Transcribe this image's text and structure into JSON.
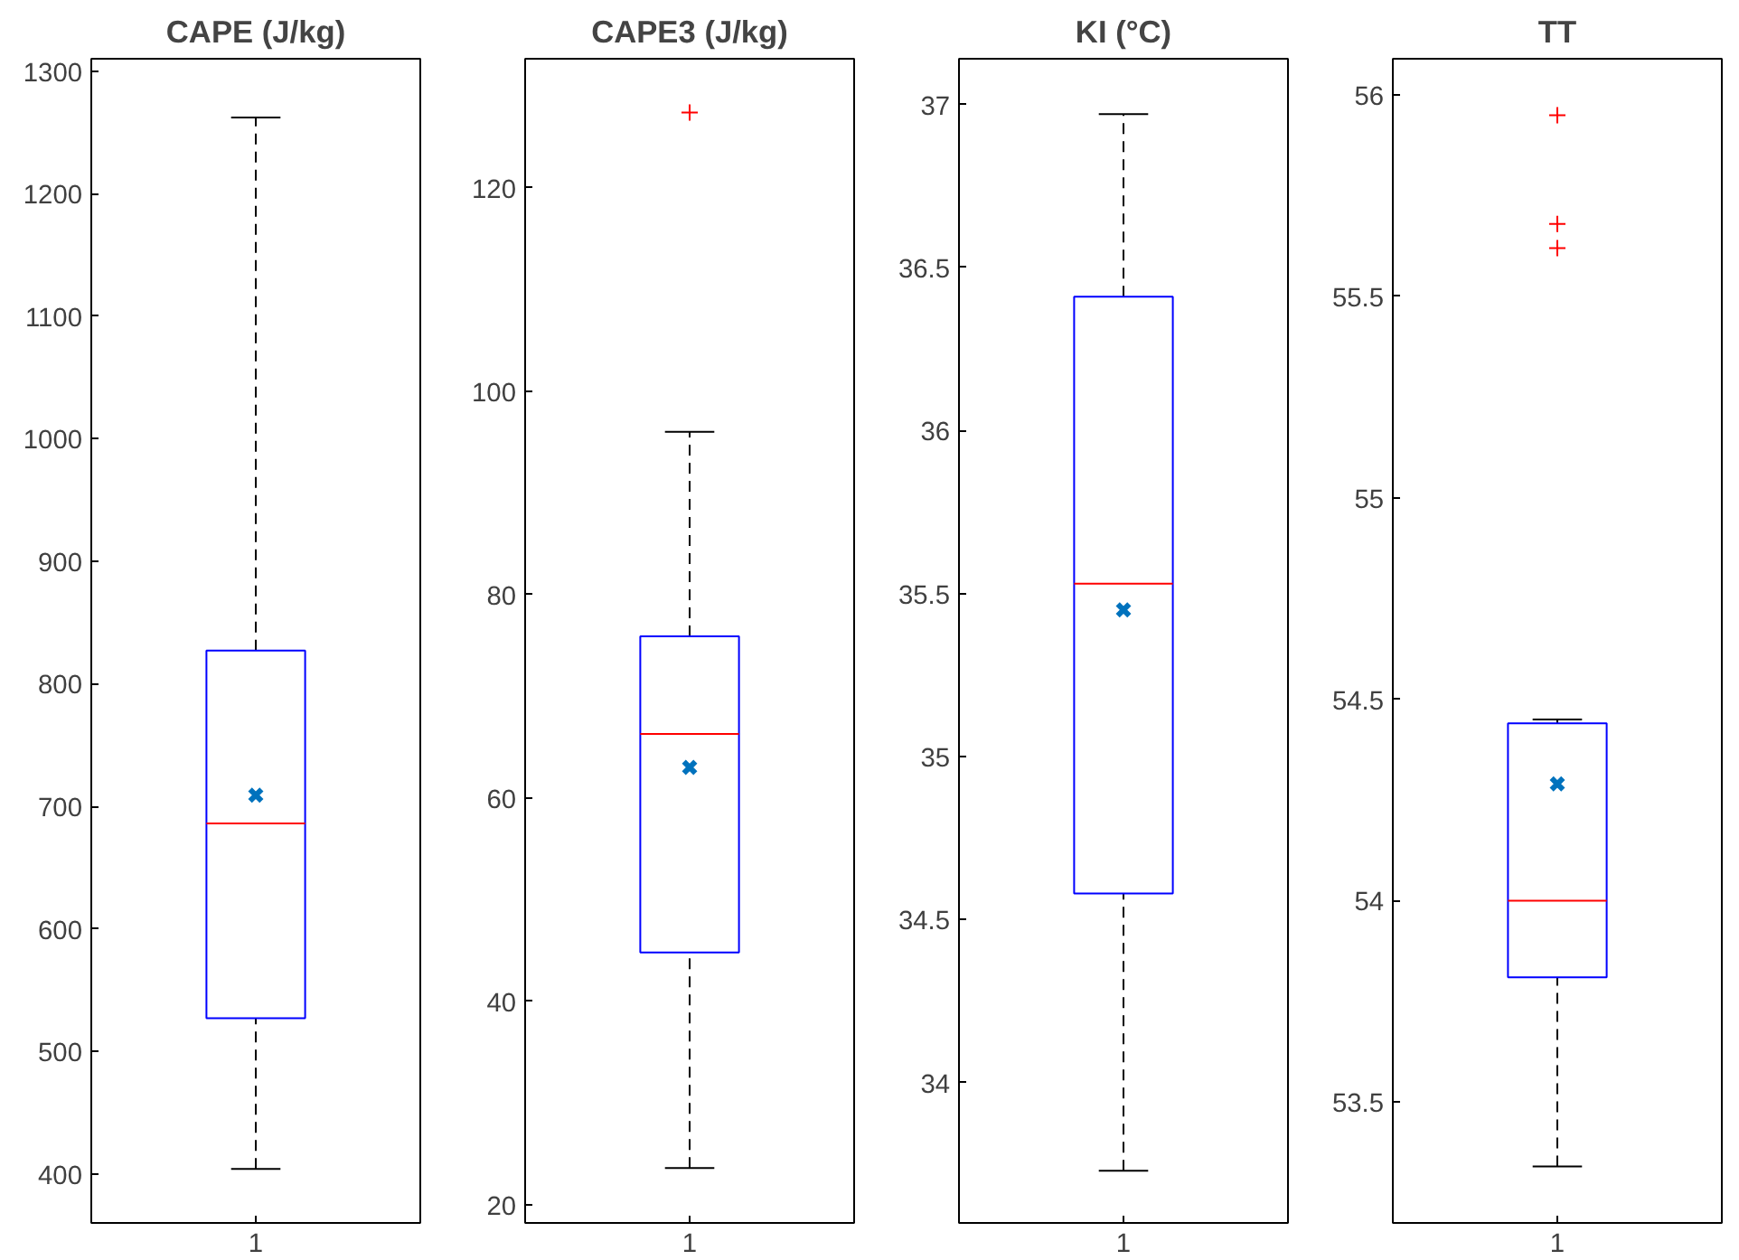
{
  "chart_data": [
    {
      "type": "box",
      "title": "CAPE (J/kg)",
      "categories": [
        "1"
      ],
      "boxes": [
        {
          "low": 404,
          "q1": 527,
          "median": 686,
          "q3": 827,
          "high": 1262,
          "mean": 709
        }
      ],
      "ylim": [
        360,
        1310
      ],
      "yticks": [
        400,
        500,
        600,
        700,
        800,
        900,
        1000,
        1100,
        1200,
        1300
      ],
      "grid": false
    },
    {
      "type": "box",
      "title": "CAPE3 (J/kg)",
      "categories": [
        "1"
      ],
      "boxes": [
        {
          "low": 23.6,
          "q1": 44.8,
          "median": 66.3,
          "q3": 75.9,
          "high": 96,
          "mean": 63,
          "outliers": [
            127.4
          ]
        }
      ],
      "ylim": [
        18.2,
        132.7
      ],
      "yticks": [
        20,
        40,
        60,
        80,
        100,
        120
      ],
      "grid": false
    },
    {
      "type": "box",
      "title": "KI (°C)",
      "categories": [
        "1"
      ],
      "boxes": [
        {
          "low": 33.73,
          "q1": 34.58,
          "median": 35.53,
          "q3": 36.41,
          "high": 36.97,
          "mean": 35.45
        }
      ],
      "ylim": [
        33.57,
        37.14
      ],
      "yticks": [
        34,
        34.5,
        35,
        35.5,
        36,
        36.5,
        37
      ],
      "grid": false
    },
    {
      "type": "box",
      "title": "TT",
      "categories": [
        "1"
      ],
      "boxes": [
        {
          "low": 53.34,
          "q1": 53.81,
          "median": 54.0,
          "q3": 54.44,
          "high": 54.45,
          "mean": 54.29,
          "outliers": [
            55.95,
            55.68,
            55.62
          ]
        }
      ],
      "ylim": [
        53.2,
        56.09
      ],
      "yticks": [
        53.5,
        54,
        54.5,
        55,
        55.5,
        56
      ],
      "grid": false
    }
  ]
}
